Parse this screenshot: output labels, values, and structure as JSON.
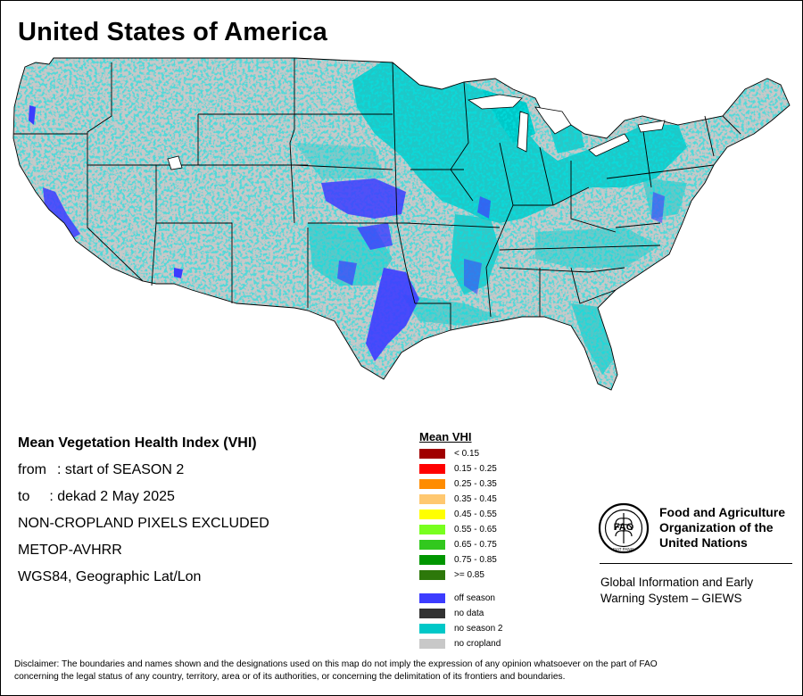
{
  "title": "United States of America",
  "info": {
    "heading": "Mean Vegetation Health Index (VHI)",
    "from_label": "from",
    "from_value": ": start of SEASON 2",
    "to_label": "to",
    "to_value": ": dekad 2 May 2025",
    "line3": "NON-CROPLAND PIXELS EXCLUDED",
    "line4": "METOP-AVHRR",
    "line5": "WGS84, Geographic Lat/Lon"
  },
  "legend": {
    "title": "Mean VHI",
    "classes": [
      {
        "label": "< 0.15",
        "color": "#a00000"
      },
      {
        "label": "0.15 - 0.25",
        "color": "#ff0000"
      },
      {
        "label": "0.25 - 0.35",
        "color": "#ff8c00"
      },
      {
        "label": "0.35 - 0.45",
        "color": "#ffc870"
      },
      {
        "label": "0.45 - 0.55",
        "color": "#ffff00"
      },
      {
        "label": "0.55 - 0.65",
        "color": "#78ff1e"
      },
      {
        "label": "0.65 - 0.75",
        "color": "#32c81e"
      },
      {
        "label": "0.75 - 0.85",
        "color": "#009600"
      },
      {
        "label": ">= 0.85",
        "color": "#2d780a"
      }
    ],
    "extra": [
      {
        "label": "off season",
        "color": "#3c3cff"
      },
      {
        "label": "no data",
        "color": "#323232"
      },
      {
        "label": "no season 2",
        "color": "#00c8c8"
      },
      {
        "label": "no cropland",
        "color": "#c8c8c8"
      }
    ]
  },
  "fao": {
    "logo_text": "FAO",
    "logo_motto": "FIAT PANIS",
    "name_line1": "Food and Agriculture",
    "name_line2": "Organization of the",
    "name_line3": "United Nations",
    "giews_line1": "Global Information and Early",
    "giews_line2": "Warning System – GIEWS"
  },
  "disclaimer_line1": "Disclaimer: The boundaries and names shown and the designations used on this map do not imply the expression of any opinion whatsoever on the part of FAO",
  "disclaimer_line2": "concerning the legal status of any country, territory, area or of its authorities, or concerning the delimitation of its frontiers and boundaries."
}
